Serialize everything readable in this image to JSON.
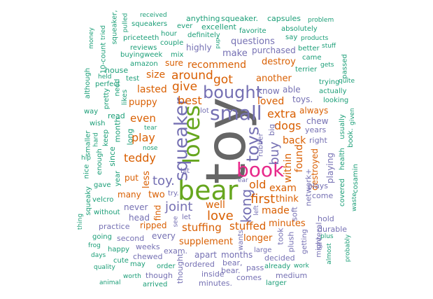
{
  "palette": {
    "green": "#1b9e77",
    "orange": "#d95f02",
    "purple": "#7570b3",
    "pink": "#e7298a",
    "lime": "#66a61e",
    "gray": "#666666"
  },
  "words": [
    {
      "text": "toy",
      "color": "gray"
    },
    {
      "text": "bear",
      "color": "lime"
    },
    {
      "text": "book",
      "color": "pink"
    },
    {
      "text": "loves",
      "color": "lime"
    },
    {
      "text": "small",
      "color": "purple"
    },
    {
      "text": "bought",
      "color": "purple"
    },
    {
      "text": "squeaker",
      "color": "purple"
    },
    {
      "text": "toys",
      "color": "purple"
    },
    {
      "text": "kong",
      "color": "purple"
    },
    {
      "text": "toy.",
      "color": "purple"
    },
    {
      "text": "joint",
      "color": "purple"
    },
    {
      "text": "love",
      "color": "orange"
    },
    {
      "text": "first",
      "color": "orange"
    },
    {
      "text": "buy",
      "color": "purple"
    },
    {
      "text": "around",
      "color": "orange"
    },
    {
      "text": "give",
      "color": "orange"
    },
    {
      "text": "got",
      "color": "orange"
    },
    {
      "text": "best",
      "color": "orange"
    },
    {
      "text": "extra",
      "color": "orange"
    },
    {
      "text": "dogs",
      "color": "orange"
    },
    {
      "text": "teddy",
      "color": "orange"
    },
    {
      "text": "play",
      "color": "orange"
    },
    {
      "text": "even",
      "color": "orange"
    },
    {
      "text": "stuffing",
      "color": "orange"
    },
    {
      "text": "stuffed",
      "color": "orange"
    },
    {
      "text": "old",
      "color": "orange"
    },
    {
      "text": "exam",
      "color": "orange"
    },
    {
      "text": "well",
      "color": "orange"
    },
    {
      "text": "made",
      "color": "orange"
    },
    {
      "text": "recommend",
      "color": "orange"
    },
    {
      "text": "size",
      "color": "orange"
    },
    {
      "text": "lasted",
      "color": "orange"
    },
    {
      "text": "loved",
      "color": "orange"
    },
    {
      "text": "within",
      "color": "orange"
    },
    {
      "text": "back",
      "color": "orange"
    },
    {
      "text": "found",
      "color": "orange"
    },
    {
      "text": "think",
      "color": "orange"
    },
    {
      "text": "supplement",
      "color": "orange"
    },
    {
      "text": "longer",
      "color": "orange"
    },
    {
      "text": "minutes",
      "color": "orange"
    },
    {
      "text": "another",
      "color": "orange"
    },
    {
      "text": "destroy",
      "color": "orange"
    },
    {
      "text": "puppy",
      "color": "orange"
    },
    {
      "text": "less",
      "color": "orange"
    },
    {
      "text": "two",
      "color": "orange"
    },
    {
      "text": "find",
      "color": "orange"
    },
    {
      "text": "ripped",
      "color": "orange"
    },
    {
      "text": "many",
      "color": "orange"
    },
    {
      "text": "put",
      "color": "orange"
    },
    {
      "text": "sure",
      "color": "orange"
    },
    {
      "text": "always",
      "color": "orange"
    },
    {
      "text": "destroyed",
      "color": "orange"
    },
    {
      "text": "make",
      "color": "purple"
    },
    {
      "text": "questions",
      "color": "purple"
    },
    {
      "text": "purchased",
      "color": "purple"
    },
    {
      "text": "highly",
      "color": "purple"
    },
    {
      "text": "know",
      "color": "purple"
    },
    {
      "text": "able",
      "color": "purple"
    },
    {
      "text": "toys.",
      "color": "purple"
    },
    {
      "text": "chew",
      "color": "purple"
    },
    {
      "text": "years",
      "color": "purple"
    },
    {
      "text": "big",
      "color": "purple"
    },
    {
      "text": "rubber",
      "color": "purple"
    },
    {
      "text": "playing",
      "color": "purple"
    },
    {
      "text": "never",
      "color": "purple"
    },
    {
      "text": "head",
      "color": "purple"
    },
    {
      "text": "every",
      "color": "purple"
    },
    {
      "text": "apart",
      "color": "purple"
    },
    {
      "text": "months",
      "color": "purple"
    },
    {
      "text": "second",
      "color": "purple"
    },
    {
      "text": "weeks",
      "color": "purple"
    },
    {
      "text": "took",
      "color": "purple"
    },
    {
      "text": "plush",
      "color": "purple"
    },
    {
      "text": "soft",
      "color": "purple"
    },
    {
      "text": "network+",
      "color": "purple"
    },
    {
      "text": "right",
      "color": "purple"
    },
    {
      "text": "come",
      "color": "purple"
    },
    {
      "text": "plays",
      "color": "purple"
    },
    {
      "text": "hold",
      "color": "purple"
    },
    {
      "text": "several",
      "color": "purple"
    },
    {
      "text": "durable",
      "color": "purple"
    },
    {
      "text": "thought",
      "color": "purple"
    },
    {
      "text": "wants",
      "color": "purple"
    },
    {
      "text": "exam.",
      "color": "purple"
    },
    {
      "text": "ordered",
      "color": "purple"
    },
    {
      "text": "inside",
      "color": "purple"
    },
    {
      "text": "bear,",
      "color": "purple"
    },
    {
      "text": "bear.",
      "color": "purple"
    },
    {
      "text": "comes",
      "color": "purple"
    },
    {
      "text": "pass",
      "color": "purple"
    },
    {
      "text": "decided",
      "color": "purple"
    },
    {
      "text": "medium",
      "color": "purple"
    },
    {
      "text": "large",
      "color": "purple"
    },
    {
      "text": "practice",
      "color": "purple"
    },
    {
      "text": "chewed",
      "color": "purple"
    },
    {
      "text": "though",
      "color": "purple"
    },
    {
      "text": "lot",
      "color": "purple"
    },
    {
      "text": "bit",
      "color": "purple"
    },
    {
      "text": "try.",
      "color": "purple"
    },
    {
      "text": "see",
      "color": "purple"
    },
    {
      "text": "let",
      "color": "purple"
    },
    {
      "text": "ear",
      "color": "purple"
    },
    {
      "text": "left",
      "color": "purple"
    },
    {
      "text": "getting",
      "color": "purple"
    },
    {
      "text": "might",
      "color": "purple"
    },
    {
      "text": "minutes.",
      "color": "purple"
    },
    {
      "text": "squeaker.",
      "color": "green"
    },
    {
      "text": "anything",
      "color": "green"
    },
    {
      "text": "capsules",
      "color": "green"
    },
    {
      "text": "problem",
      "color": "green"
    },
    {
      "text": "received",
      "color": "green"
    },
    {
      "text": "squeakers",
      "color": "green"
    },
    {
      "text": "ever",
      "color": "green"
    },
    {
      "text": "excellent",
      "color": "green"
    },
    {
      "text": "absolutely",
      "color": "green"
    },
    {
      "text": "priceteeth",
      "color": "green"
    },
    {
      "text": "hour",
      "color": "green"
    },
    {
      "text": "definitely",
      "color": "green"
    },
    {
      "text": "favorite",
      "color": "green"
    },
    {
      "text": "say",
      "color": "green"
    },
    {
      "text": "products",
      "color": "green"
    },
    {
      "text": "couple",
      "color": "green"
    },
    {
      "text": "reviews",
      "color": "green"
    },
    {
      "text": "better",
      "color": "green"
    },
    {
      "text": "stuff",
      "color": "green"
    },
    {
      "text": "buyingweek",
      "color": "green"
    },
    {
      "text": "mix",
      "color": "green"
    },
    {
      "text": "came",
      "color": "green"
    },
    {
      "text": "amazon",
      "color": "green"
    },
    {
      "text": "gets",
      "color": "green"
    },
    {
      "text": "passed",
      "color": "green"
    },
    {
      "text": "house",
      "color": "green"
    },
    {
      "text": "terrier",
      "color": "green"
    },
    {
      "text": "test",
      "color": "green"
    },
    {
      "text": "trying",
      "color": "green"
    },
    {
      "text": "quite",
      "color": "green"
    },
    {
      "text": "perfect",
      "color": "green"
    },
    {
      "text": "actually",
      "color": "green"
    },
    {
      "text": "looking",
      "color": "green"
    },
    {
      "text": "way",
      "color": "green"
    },
    {
      "text": "read",
      "color": "green"
    },
    {
      "text": "wish",
      "color": "green"
    },
    {
      "text": "tear",
      "color": "green"
    },
    {
      "text": "nose",
      "color": "green"
    },
    {
      "text": "keep",
      "color": "green"
    },
    {
      "text": "since",
      "color": "green"
    },
    {
      "text": "nice",
      "color": "green"
    },
    {
      "text": "gave",
      "color": "green"
    },
    {
      "text": "velcro",
      "color": "green"
    },
    {
      "text": "without",
      "color": "green"
    },
    {
      "text": "going",
      "color": "green"
    },
    {
      "text": "happy",
      "color": "green"
    },
    {
      "text": "days",
      "color": "green"
    },
    {
      "text": "cute",
      "color": "green"
    },
    {
      "text": "may",
      "color": "green"
    },
    {
      "text": "order",
      "color": "green"
    },
    {
      "text": "quality",
      "color": "green"
    },
    {
      "text": "worth",
      "color": "green"
    },
    {
      "text": "arrived",
      "color": "green"
    },
    {
      "text": "animal",
      "color": "green"
    },
    {
      "text": "already",
      "color": "green"
    },
    {
      "text": "work",
      "color": "green"
    },
    {
      "text": "larger",
      "color": "green"
    },
    {
      "text": "plus",
      "color": "green"
    },
    {
      "text": "almost",
      "color": "green"
    },
    {
      "text": "probably",
      "color": "green"
    },
    {
      "text": "waste",
      "color": "green"
    },
    {
      "text": "cosamin",
      "color": "green"
    },
    {
      "text": "covered",
      "color": "green"
    },
    {
      "text": "health",
      "color": "green"
    },
    {
      "text": "usually",
      "color": "green"
    },
    {
      "text": "book.",
      "color": "green"
    },
    {
      "text": "given",
      "color": "green"
    },
    {
      "text": "frog",
      "color": "green"
    },
    {
      "text": "thing",
      "color": "green"
    },
    {
      "text": "squeaky",
      "color": "green"
    },
    {
      "text": "enough",
      "color": "green"
    },
    {
      "text": "year",
      "color": "green"
    },
    {
      "text": "smaller",
      "color": "green"
    },
    {
      "text": "hip",
      "color": "green"
    },
    {
      "text": "hard",
      "color": "green"
    },
    {
      "text": "pretty",
      "color": "green"
    },
    {
      "text": "although",
      "color": "green"
    },
    {
      "text": "10-count",
      "color": "green"
    },
    {
      "text": "held",
      "color": "green"
    },
    {
      "text": "need",
      "color": "green"
    },
    {
      "text": "likes",
      "color": "green"
    },
    {
      "text": "long",
      "color": "green"
    },
    {
      "text": "month",
      "color": "green"
    },
    {
      "text": "money",
      "color": "green"
    },
    {
      "text": "tried",
      "color": "green"
    },
    {
      "text": "squeaker,",
      "color": "green"
    },
    {
      "text": "pulled",
      "color": "green"
    },
    {
      "text": "pup",
      "color": "green"
    }
  ]
}
